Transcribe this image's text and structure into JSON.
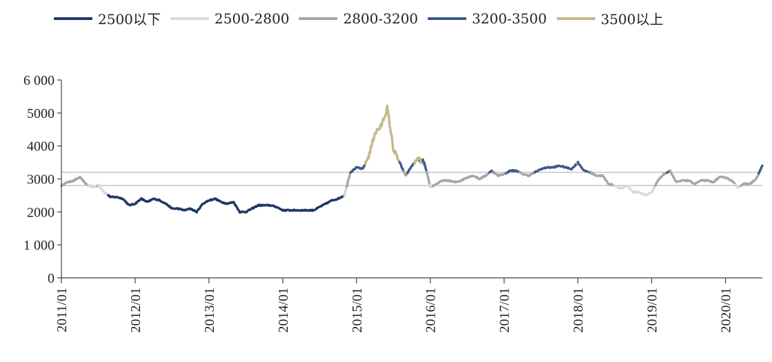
{
  "chart_data": {
    "type": "line",
    "title": "",
    "xlabel": "",
    "ylabel": "",
    "ylim": [
      0,
      6000
    ],
    "yticks": [
      "0",
      "1 000",
      "2000",
      "3000",
      "4000",
      "5000",
      "6 000"
    ],
    "ytick_values": [
      0,
      1000,
      2000,
      3000,
      4000,
      5000,
      6000
    ],
    "xlim": [
      "2011-01",
      "2020-07"
    ],
    "xticks": [
      "2011/01",
      "2012/01",
      "2013/01",
      "2014/01",
      "2015/01",
      "2016/01",
      "2017/01",
      "2018/01",
      "2019/01",
      "2020/01"
    ],
    "grid": false,
    "legend_position": "top",
    "reference_lines": [
      2800,
      3200
    ],
    "series": [
      {
        "name": "2500以下",
        "color": "#1f3864",
        "range": [
          null,
          2500
        ]
      },
      {
        "name": "2500-2800",
        "color": "#d9d9d9",
        "range": [
          2500,
          2800
        ]
      },
      {
        "name": "2800-3200",
        "color": "#a6a6a6",
        "range": [
          2800,
          3200
        ]
      },
      {
        "name": "3200-3500",
        "color": "#3a5a8c",
        "range": [
          3200,
          3500
        ]
      },
      {
        "name": "3500以上",
        "color": "#c4b98a",
        "range": [
          3500,
          null
        ]
      }
    ],
    "index_points": [
      [
        "2011-01",
        2800
      ],
      [
        "2011-02",
        2900
      ],
      [
        "2011-03",
        2950
      ],
      [
        "2011-04",
        3050
      ],
      [
        "2011-05",
        2850
      ],
      [
        "2011-06",
        2750
      ],
      [
        "2011-07",
        2800
      ],
      [
        "2011-08",
        2600
      ],
      [
        "2011-09",
        2450
      ],
      [
        "2011-10",
        2450
      ],
      [
        "2011-11",
        2400
      ],
      [
        "2011-12",
        2200
      ],
      [
        "2012-01",
        2250
      ],
      [
        "2012-02",
        2400
      ],
      [
        "2012-03",
        2300
      ],
      [
        "2012-04",
        2400
      ],
      [
        "2012-05",
        2350
      ],
      [
        "2012-06",
        2250
      ],
      [
        "2012-07",
        2100
      ],
      [
        "2012-08",
        2100
      ],
      [
        "2012-09",
        2050
      ],
      [
        "2012-10",
        2100
      ],
      [
        "2012-11",
        2000
      ],
      [
        "2012-12",
        2250
      ],
      [
        "2013-01",
        2350
      ],
      [
        "2013-02",
        2400
      ],
      [
        "2013-03",
        2300
      ],
      [
        "2013-04",
        2250
      ],
      [
        "2013-05",
        2300
      ],
      [
        "2013-06",
        2000
      ],
      [
        "2013-07",
        2000
      ],
      [
        "2013-08",
        2100
      ],
      [
        "2013-09",
        2200
      ],
      [
        "2013-10",
        2200
      ],
      [
        "2013-11",
        2200
      ],
      [
        "2013-12",
        2150
      ],
      [
        "2014-01",
        2050
      ],
      [
        "2014-02",
        2050
      ],
      [
        "2014-03",
        2050
      ],
      [
        "2014-04",
        2050
      ],
      [
        "2014-05",
        2050
      ],
      [
        "2014-06",
        2050
      ],
      [
        "2014-07",
        2150
      ],
      [
        "2014-08",
        2250
      ],
      [
        "2014-09",
        2350
      ],
      [
        "2014-10",
        2400
      ],
      [
        "2014-11",
        2500
      ],
      [
        "2014-12",
        3200
      ],
      [
        "2015-01",
        3350
      ],
      [
        "2015-02",
        3300
      ],
      [
        "2015-03",
        3700
      ],
      [
        "2015-04",
        4400
      ],
      [
        "2015-05",
        4600
      ],
      [
        "2015-06",
        5150
      ],
      [
        "2015-07",
        3900
      ],
      [
        "2015-08",
        3500
      ],
      [
        "2015-09",
        3100
      ],
      [
        "2015-10",
        3400
      ],
      [
        "2015-11",
        3600
      ],
      [
        "2015-12",
        3500
      ],
      [
        "2016-01",
        2750
      ],
      [
        "2016-02",
        2850
      ],
      [
        "2016-03",
        2950
      ],
      [
        "2016-04",
        2950
      ],
      [
        "2016-05",
        2900
      ],
      [
        "2016-06",
        2950
      ],
      [
        "2016-07",
        3050
      ],
      [
        "2016-08",
        3100
      ],
      [
        "2016-09",
        3000
      ],
      [
        "2016-10",
        3100
      ],
      [
        "2016-11",
        3250
      ],
      [
        "2016-12",
        3100
      ],
      [
        "2017-01",
        3150
      ],
      [
        "2017-02",
        3250
      ],
      [
        "2017-03",
        3250
      ],
      [
        "2017-04",
        3150
      ],
      [
        "2017-05",
        3100
      ],
      [
        "2017-06",
        3200
      ],
      [
        "2017-07",
        3300
      ],
      [
        "2017-08",
        3350
      ],
      [
        "2017-09",
        3350
      ],
      [
        "2017-10",
        3400
      ],
      [
        "2017-11",
        3350
      ],
      [
        "2017-12",
        3300
      ],
      [
        "2018-01",
        3500
      ],
      [
        "2018-02",
        3250
      ],
      [
        "2018-03",
        3200
      ],
      [
        "2018-04",
        3100
      ],
      [
        "2018-05",
        3100
      ],
      [
        "2018-06",
        2850
      ],
      [
        "2018-07",
        2800
      ],
      [
        "2018-08",
        2700
      ],
      [
        "2018-09",
        2800
      ],
      [
        "2018-10",
        2600
      ],
      [
        "2018-11",
        2600
      ],
      [
        "2018-12",
        2500
      ],
      [
        "2019-01",
        2600
      ],
      [
        "2019-02",
        2950
      ],
      [
        "2019-03",
        3150
      ],
      [
        "2019-04",
        3250
      ],
      [
        "2019-05",
        2900
      ],
      [
        "2019-06",
        2950
      ],
      [
        "2019-07",
        2950
      ],
      [
        "2019-08",
        2850
      ],
      [
        "2019-09",
        2950
      ],
      [
        "2019-10",
        2950
      ],
      [
        "2019-11",
        2900
      ],
      [
        "2019-12",
        3050
      ],
      [
        "2020-01",
        3050
      ],
      [
        "2020-02",
        2950
      ],
      [
        "2020-03",
        2750
      ],
      [
        "2020-04",
        2850
      ],
      [
        "2020-05",
        2850
      ],
      [
        "2020-06",
        3000
      ],
      [
        "2020-07",
        3400
      ]
    ]
  }
}
